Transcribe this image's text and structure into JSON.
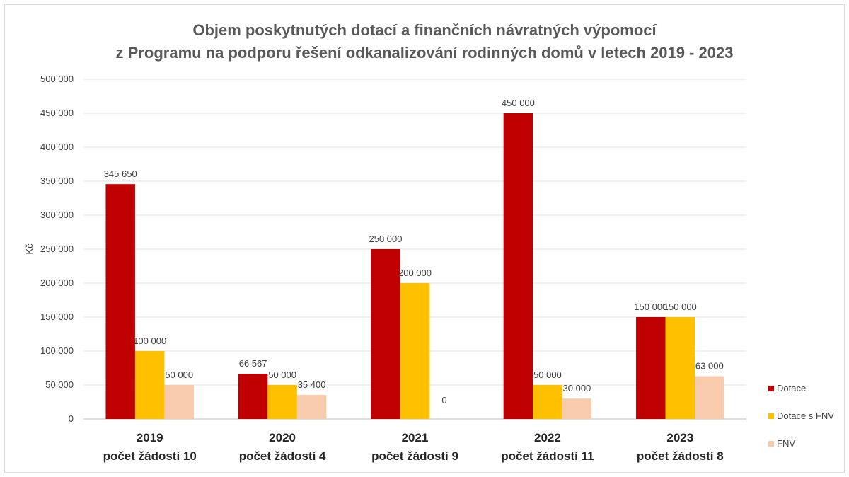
{
  "chart_data": {
    "type": "bar",
    "title_lines": [
      "Objem poskytnutých dotací a finančních návratných výpomocí",
      "z Programu na podporu řešení odkanalizování rodinných domů v letech 2019 - 2023"
    ],
    "ylabel": "Kč",
    "ylim": [
      0,
      500000
    ],
    "yticks": [
      {
        "value": 0,
        "label": "0"
      },
      {
        "value": 50000,
        "label": "50 000"
      },
      {
        "value": 100000,
        "label": "100 000"
      },
      {
        "value": 150000,
        "label": "150 000"
      },
      {
        "value": 200000,
        "label": "200 000"
      },
      {
        "value": 250000,
        "label": "250 000"
      },
      {
        "value": 300000,
        "label": "300 000"
      },
      {
        "value": 350000,
        "label": "350 000"
      },
      {
        "value": 400000,
        "label": "400 000"
      },
      {
        "value": 450000,
        "label": "450 000"
      },
      {
        "value": 500000,
        "label": "500 000"
      }
    ],
    "categories": [
      {
        "year": "2019",
        "sub": "počet žádostí 10"
      },
      {
        "year": "2020",
        "sub": "počet žádostí 4"
      },
      {
        "year": "2021",
        "sub": "počet žádostí 9"
      },
      {
        "year": "2022",
        "sub": "počet žádostí 11"
      },
      {
        "year": "2023",
        "sub": "počet žádostí 8"
      }
    ],
    "series": [
      {
        "name": "Dotace",
        "color": "#c00000",
        "values": [
          345650,
          66567,
          250000,
          450000,
          150000
        ],
        "labels": [
          "345 650",
          "66 567",
          "250 000",
          "450 000",
          "150 000"
        ]
      },
      {
        "name": "Dotace s FNV",
        "color": "#ffc000",
        "values": [
          100000,
          50000,
          200000,
          50000,
          150000
        ],
        "labels": [
          "100 000",
          "50 000",
          "200 000",
          "50 000",
          "150 000"
        ]
      },
      {
        "name": "FNV",
        "color": "#f8cbad",
        "values": [
          50000,
          35400,
          0,
          30000,
          63000
        ],
        "labels": [
          "50 000",
          "35 400",
          "0",
          "30 000",
          "63 000"
        ]
      }
    ],
    "grid": true,
    "legend_position": "right"
  }
}
